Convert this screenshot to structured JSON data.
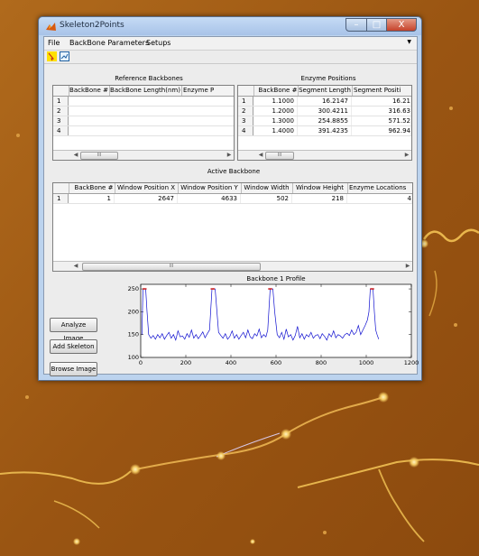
{
  "window": {
    "title": "Skeleton2Points",
    "minimize": "–",
    "maximize": "□",
    "close": "X"
  },
  "menu": {
    "items": [
      "File",
      "BackBone Parameters",
      "Setups"
    ],
    "overflow_icon": "chevron-down-icon"
  },
  "toolbar": {
    "tools": [
      "select-pointer-icon",
      "zoom-icon"
    ]
  },
  "reference_backbones": {
    "title": "Reference Backbones",
    "columns": [
      "BackBone #",
      "BackBone Length(nm)",
      "Enzyme P"
    ],
    "rows": [
      {
        "index": "1",
        "cells": [
          "",
          "",
          ""
        ]
      },
      {
        "index": "2",
        "cells": [
          "",
          "",
          ""
        ]
      },
      {
        "index": "3",
        "cells": [
          "",
          "",
          ""
        ]
      },
      {
        "index": "4",
        "cells": [
          "",
          "",
          ""
        ]
      }
    ],
    "scroll_thumb": "III"
  },
  "enzyme_positions": {
    "title": "Enzyme Positions",
    "columns": [
      "BackBone #",
      "Segment Length",
      "Segment Positi"
    ],
    "rows": [
      {
        "index": "1",
        "cells": [
          "1.1000",
          "16.2147",
          "16.21"
        ]
      },
      {
        "index": "2",
        "cells": [
          "1.2000",
          "300.4211",
          "316.63"
        ]
      },
      {
        "index": "3",
        "cells": [
          "1.3000",
          "254.8855",
          "571.52"
        ]
      },
      {
        "index": "4",
        "cells": [
          "1.4000",
          "391.4235",
          "962.94"
        ]
      }
    ],
    "scroll_thumb": "III"
  },
  "active_backbone": {
    "title": "Active Backbone",
    "columns": [
      "BackBone #",
      "Window Position X",
      "Window Position Y",
      "Window Width",
      "Window Height",
      "Enzyme Locations"
    ],
    "rows": [
      {
        "index": "1",
        "cells": [
          "1",
          "2647",
          "4633",
          "502",
          "218",
          "4"
        ]
      }
    ],
    "scroll_thumb": "III"
  },
  "buttons": {
    "analyze": "Analyze Image",
    "add_skeleton": "Add Skeleton",
    "browse": "Browse Image"
  },
  "colors": {
    "profile_line": "#1010d0",
    "marker": "#cc2222",
    "titlebar": "#b9d1ef",
    "close_button": "#c9452d",
    "background_surface": "#a05a14"
  },
  "chart_data": {
    "type": "line",
    "title": "Backbone 1 Profile",
    "xlabel": "",
    "ylabel": "",
    "xlim": [
      0,
      1200
    ],
    "ylim": [
      100,
      260
    ],
    "xticks": [
      0,
      200,
      400,
      600,
      800,
      1000,
      1200
    ],
    "yticks": [
      100,
      150,
      200,
      250
    ],
    "grid": false,
    "series": [
      {
        "x": [
          5,
          10,
          16,
          22,
          28,
          35,
          45,
          55,
          65,
          75,
          85,
          95,
          105,
          115,
          125,
          135,
          145,
          155,
          165,
          175,
          185,
          195,
          205,
          215,
          225,
          235,
          245,
          255,
          265,
          275,
          285,
          295,
          305,
          310,
          316,
          322,
          330,
          338,
          345,
          355,
          365,
          375,
          385,
          395,
          405,
          415,
          425,
          435,
          445,
          455,
          465,
          475,
          485,
          495,
          505,
          515,
          525,
          535,
          545,
          555,
          563,
          568,
          574,
          580,
          586,
          594,
          605,
          615,
          625,
          635,
          645,
          655,
          665,
          675,
          685,
          695,
          705,
          715,
          725,
          735,
          745,
          755,
          765,
          775,
          785,
          795,
          805,
          815,
          825,
          835,
          845,
          855,
          865,
          875,
          885,
          895,
          905,
          915,
          925,
          935,
          945,
          955,
          965,
          975,
          985,
          995,
          1005,
          1012,
          1018,
          1024,
          1030,
          1036,
          1042,
          1048,
          1055
        ],
        "y": [
          150,
          250,
          250,
          250,
          200,
          150,
          142,
          148,
          140,
          150,
          143,
          152,
          140,
          148,
          155,
          142,
          150,
          138,
          158,
          145,
          147,
          140,
          152,
          144,
          160,
          142,
          150,
          141,
          148,
          156,
          143,
          152,
          160,
          200,
          250,
          250,
          250,
          200,
          155,
          148,
          142,
          152,
          140,
          146,
          158,
          142,
          150,
          140,
          148,
          155,
          143,
          160,
          145,
          141,
          152,
          147,
          162,
          143,
          150,
          145,
          160,
          200,
          250,
          250,
          250,
          200,
          150,
          143,
          155,
          140,
          162,
          145,
          150,
          138,
          148,
          168,
          143,
          152,
          140,
          150,
          145,
          155,
          142,
          148,
          150,
          141,
          152,
          146,
          138,
          152,
          145,
          158,
          143,
          150,
          147,
          142,
          150,
          153,
          148,
          160,
          150,
          155,
          170,
          150,
          160,
          170,
          182,
          200,
          250,
          250,
          250,
          200,
          160,
          150,
          140
        ]
      }
    ],
    "markers": {
      "x": [
        12,
        17,
        22,
        314,
        319,
        324,
        569,
        574,
        579,
        1021,
        1026,
        1031
      ],
      "y": [
        250,
        250,
        250,
        250,
        250,
        250,
        250,
        250,
        250,
        250,
        250,
        250
      ]
    }
  }
}
